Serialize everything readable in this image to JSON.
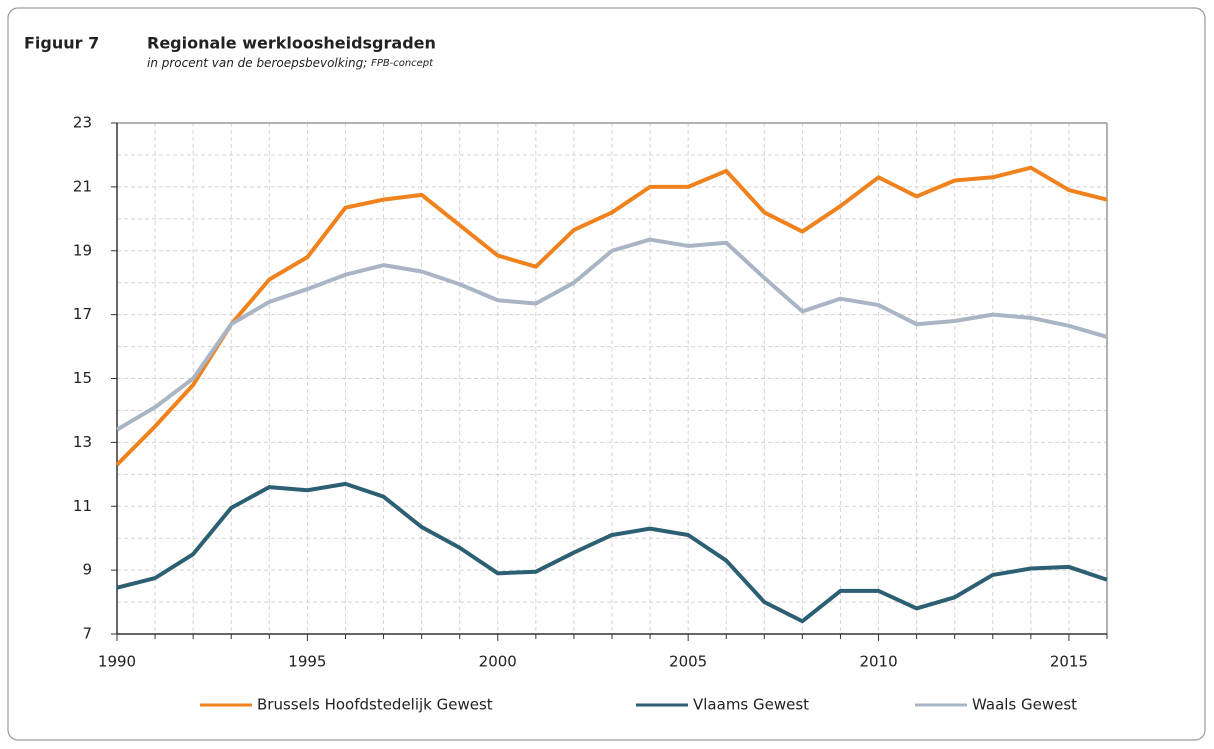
{
  "chart_data": {
    "type": "line",
    "figure_label": "Figuur 7",
    "title": "Regionale werkloosheidsgraden",
    "subtitle": "in procent van de beroepsbevolking;",
    "subtitle_note": "FPB-concept",
    "x": [
      1990,
      1991,
      1992,
      1993,
      1994,
      1995,
      1996,
      1997,
      1998,
      1999,
      2000,
      2001,
      2002,
      2003,
      2004,
      2005,
      2006,
      2007,
      2008,
      2009,
      2010,
      2011,
      2012,
      2013,
      2014,
      2015,
      2016
    ],
    "series": [
      {
        "name": "Brussels Hoofdstedelijk Gewest",
        "color": "#f0821e",
        "values": [
          12.3,
          13.5,
          14.8,
          16.7,
          18.1,
          18.8,
          20.35,
          20.6,
          20.75,
          19.8,
          18.85,
          18.5,
          19.65,
          20.2,
          21.0,
          21.0,
          21.5,
          20.2,
          19.6,
          20.4,
          21.3,
          20.7,
          21.2,
          21.3,
          21.6,
          20.9,
          20.6
        ]
      },
      {
        "name": "Vlaams Gewest",
        "color": "#2d5f73",
        "values": [
          8.45,
          8.75,
          9.5,
          10.95,
          11.6,
          11.5,
          11.7,
          11.3,
          10.35,
          9.7,
          8.9,
          8.95,
          9.55,
          10.1,
          10.3,
          10.1,
          9.3,
          8.0,
          7.4,
          8.35,
          8.35,
          7.8,
          8.15,
          8.85,
          9.05,
          9.1,
          8.7
        ]
      },
      {
        "name": "Waals Gewest",
        "color": "#a9b4c5",
        "values": [
          13.4,
          14.1,
          15.0,
          16.7,
          17.4,
          17.8,
          18.25,
          18.55,
          18.35,
          17.95,
          17.45,
          17.35,
          18.0,
          19.0,
          19.35,
          19.15,
          19.25,
          18.15,
          17.1,
          17.5,
          17.3,
          16.7,
          16.8,
          17.0,
          16.9,
          16.65,
          16.3
        ]
      }
    ],
    "xlim": [
      1990,
      2016
    ],
    "xticks": [
      1990,
      1995,
      2000,
      2005,
      2010,
      2015
    ],
    "x_minor_ticks": [
      1991,
      1992,
      1993,
      1994,
      1996,
      1997,
      1998,
      1999,
      2001,
      2002,
      2003,
      2004,
      2006,
      2007,
      2008,
      2009,
      2011,
      2012,
      2013,
      2014,
      2016
    ],
    "ylim": [
      7,
      23
    ],
    "yticks": [
      7,
      9,
      11,
      13,
      15,
      17,
      19,
      21,
      23
    ],
    "y_minor_ticks": [
      8,
      10,
      12,
      14,
      16,
      18,
      20,
      22
    ],
    "grid": true,
    "legend": "bottom"
  }
}
